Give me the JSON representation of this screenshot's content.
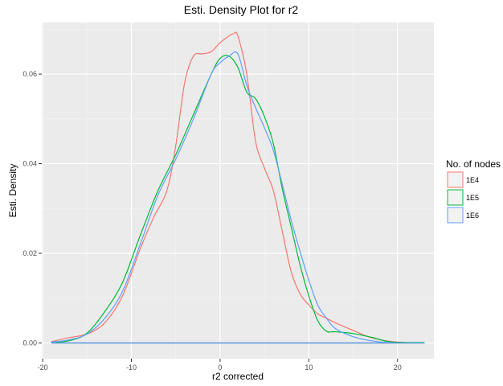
{
  "chart_data": {
    "type": "line",
    "title": "Esti. Density Plot for r2",
    "xlabel": "r2 corrected",
    "ylabel": "Esti. Density",
    "xlim": [
      -20.1,
      24.1
    ],
    "ylim": [
      -0.0035,
      0.0715
    ],
    "x_ticks": [
      -20,
      -10,
      0,
      10,
      20
    ],
    "x_tick_labels": [
      "-20",
      "-10",
      "0",
      "10",
      "20"
    ],
    "y_ticks": [
      0,
      0.02,
      0.04,
      0.06
    ],
    "y_tick_labels": [
      "0.00",
      "0.02",
      "0.04",
      "0.06"
    ],
    "grid": true,
    "legend": {
      "title": "No. of nodes",
      "position": "right"
    },
    "series": [
      {
        "name": "1E4",
        "color": "#F8766D",
        "x": [
          -19,
          -17,
          -15,
          -13,
          -11,
          -9,
          -7.5,
          -6,
          -5,
          -4,
          -3,
          -2,
          -1,
          0,
          1,
          1.5,
          2,
          3,
          4,
          5,
          6,
          7,
          8,
          9,
          10,
          11,
          12,
          13,
          15,
          17,
          19,
          21,
          23
        ],
        "y": [
          0.0003,
          0.0012,
          0.002,
          0.0045,
          0.0105,
          0.021,
          0.028,
          0.034,
          0.044,
          0.058,
          0.064,
          0.0645,
          0.065,
          0.067,
          0.0685,
          0.069,
          0.0685,
          0.06,
          0.045,
          0.039,
          0.034,
          0.025,
          0.016,
          0.011,
          0.0085,
          0.0065,
          0.0055,
          0.0045,
          0.0028,
          0.0012,
          0.0004,
          0.0001,
          0.0
        ]
      },
      {
        "name": "1E5",
        "color": "#00BA38",
        "x": [
          -19,
          -17,
          -15,
          -13,
          -11,
          -9,
          -7,
          -5,
          -3,
          -1,
          0,
          1,
          2,
          3,
          4,
          5,
          6,
          7,
          8,
          9,
          10,
          11,
          12,
          13,
          15,
          17,
          19,
          21,
          23
        ],
        "y": [
          0.0001,
          0.0005,
          0.0022,
          0.007,
          0.0135,
          0.024,
          0.034,
          0.042,
          0.051,
          0.06,
          0.0635,
          0.064,
          0.0615,
          0.056,
          0.0545,
          0.0505,
          0.0445,
          0.0345,
          0.026,
          0.0175,
          0.0105,
          0.005,
          0.0026,
          0.0025,
          0.0021,
          0.0013,
          0.0003,
          0.0001,
          0.0001
        ]
      },
      {
        "name": "1E6",
        "color": "#619CFF",
        "x": [
          -19,
          -17,
          -15,
          -13,
          -11,
          -9,
          -7,
          -5,
          -3,
          -1,
          0,
          1,
          2,
          3,
          4,
          5,
          6,
          7,
          8,
          9,
          10,
          11,
          12,
          13,
          15,
          17,
          19,
          21,
          23
        ],
        "y": [
          0.0002,
          0.0007,
          0.002,
          0.0055,
          0.0115,
          0.022,
          0.033,
          0.041,
          0.05,
          0.06,
          0.0625,
          0.064,
          0.0645,
          0.0575,
          0.0525,
          0.048,
          0.043,
          0.0355,
          0.0275,
          0.0205,
          0.014,
          0.0085,
          0.0055,
          0.0032,
          0.0014,
          0.0005,
          0.0001,
          0.0,
          0.0
        ]
      }
    ]
  }
}
